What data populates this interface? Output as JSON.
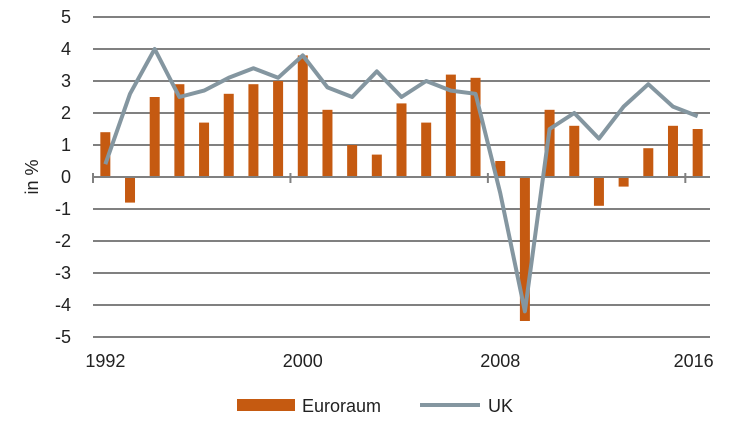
{
  "chart_data": {
    "type": "bar+line",
    "title": "",
    "xlabel": "",
    "ylabel": "in %",
    "ylim": [
      -5,
      5
    ],
    "yticks": [
      5,
      4,
      3,
      2,
      1,
      0,
      -1,
      -2,
      -3,
      -4,
      -5
    ],
    "x": [
      1992,
      1993,
      1994,
      1995,
      1996,
      1997,
      1998,
      1999,
      2000,
      2001,
      2002,
      2003,
      2004,
      2005,
      2006,
      2007,
      2008,
      2009,
      2010,
      2011,
      2012,
      2013,
      2014,
      2015,
      2016
    ],
    "xtick_labels": [
      "1992",
      "2000",
      "2008",
      "2016"
    ],
    "grid": true,
    "legend_position": "bottom",
    "series": [
      {
        "name": "Euroraum",
        "kind": "bar",
        "color": "#c55a11",
        "values": [
          1.4,
          -0.8,
          2.5,
          2.9,
          1.7,
          2.6,
          2.9,
          3.0,
          3.8,
          2.1,
          1.0,
          0.7,
          2.3,
          1.7,
          3.2,
          3.1,
          0.5,
          -4.5,
          2.1,
          1.6,
          -0.9,
          -0.3,
          0.9,
          1.6,
          1.5
        ]
      },
      {
        "name": "UK",
        "kind": "line",
        "color": "#8496a0",
        "values": [
          0.4,
          2.6,
          4.0,
          2.5,
          2.7,
          3.1,
          3.4,
          3.1,
          3.8,
          2.8,
          2.5,
          3.3,
          2.5,
          3.0,
          2.7,
          2.6,
          -0.5,
          -4.2,
          1.5,
          2.0,
          1.2,
          2.2,
          2.9,
          2.2,
          1.9
        ]
      }
    ]
  }
}
